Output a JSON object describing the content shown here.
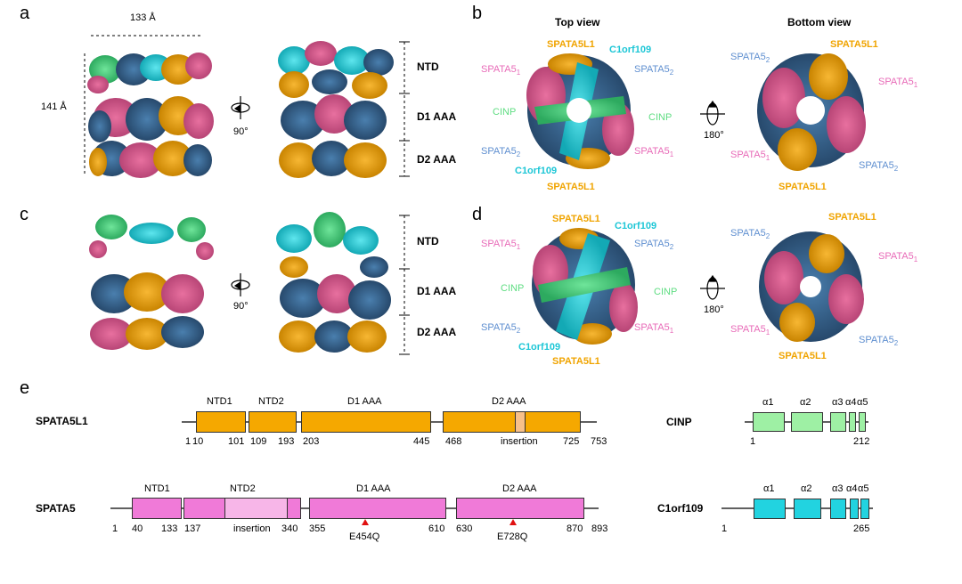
{
  "panels": {
    "a": "a",
    "b": "b",
    "c": "c",
    "d": "d",
    "e": "e"
  },
  "dims": {
    "width": "133 Å",
    "height": "141 Å"
  },
  "rotation": {
    "deg90": "90°",
    "deg180": "180°"
  },
  "layers": {
    "ntd": "NTD",
    "d1": "D1 AAA",
    "d2": "D2 AAA"
  },
  "views": {
    "top": "Top view",
    "bottom": "Bottom view"
  },
  "subunits": {
    "spata5l1": "SPATA5L1",
    "c1orf109": "C1orf109",
    "spata5": "SPATA5",
    "cinp": "CINP",
    "sub1": "1",
    "sub2": "2"
  },
  "domains": {
    "spata5l1": {
      "name": "SPATA5L1",
      "labels": [
        "NTD1",
        "NTD2",
        "D1 AAA",
        "D2 AAA",
        "insertion"
      ],
      "numbers": [
        "1",
        "10",
        "101",
        "109",
        "193",
        "203",
        "445",
        "468",
        "725",
        "753"
      ]
    },
    "spata5": {
      "name": "SPATA5",
      "labels": [
        "NTD1",
        "NTD2",
        "D1 AAA",
        "D2 AAA",
        "insertion"
      ],
      "numbers": [
        "1",
        "40",
        "133",
        "137",
        "340",
        "355",
        "610",
        "630",
        "870",
        "893"
      ],
      "mutations": [
        "E454Q",
        "E728Q"
      ]
    },
    "cinp": {
      "name": "CINP",
      "helices": [
        "α1",
        "α2",
        "α3",
        "α4",
        "α5"
      ],
      "numbers": [
        "1",
        "212"
      ]
    },
    "c1orf109": {
      "name": "C1orf109",
      "helices": [
        "α1",
        "α2",
        "α3",
        "α4",
        "α5"
      ],
      "numbers": [
        "1",
        "265"
      ]
    }
  },
  "colors": {
    "orange": "#f5a800",
    "pink": "#f07ad8",
    "lightpink": "#f7b6e8",
    "cyan": "#22d3e0",
    "green": "#9ef0a4",
    "blue": "#3d6f9e",
    "insertion": "#f7c08a"
  }
}
